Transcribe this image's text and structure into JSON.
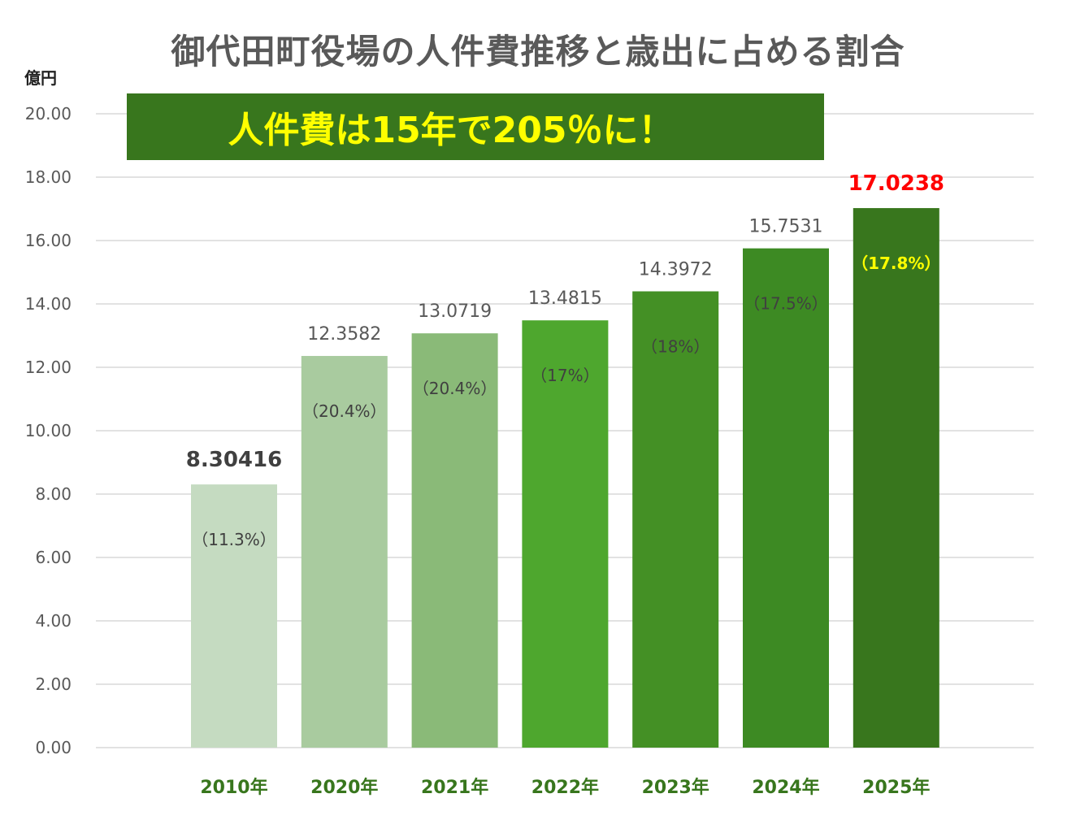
{
  "title": "御代田町役場の人件費推移と歳出に占める割合",
  "y_unit": "億円",
  "banner": "人件費は15年で205％に！",
  "chart_data": {
    "type": "bar",
    "title": "御代田町役場の人件費推移と歳出に占める割合",
    "ylabel": "億円",
    "ylim": [
      0,
      20
    ],
    "yticks": [
      "0.00",
      "2.00",
      "4.00",
      "6.00",
      "8.00",
      "10.00",
      "12.00",
      "14.00",
      "16.00",
      "18.00",
      "20.00"
    ],
    "categories": [
      "2010年",
      "2020年",
      "2021年",
      "2022年",
      "2023年",
      "2024年",
      "2025年"
    ],
    "values": [
      8.30416,
      12.3582,
      13.0719,
      13.4815,
      14.3972,
      15.7531,
      17.0238
    ],
    "value_labels": [
      "8.30416",
      "12.3582",
      "13.0719",
      "13.4815",
      "14.3972",
      "15.7531",
      "17.0238"
    ],
    "share_labels": [
      "（11.3%）",
      "（20.4%）",
      "（20.4%）",
      "（17%）",
      "（18%）",
      "（17.5%）",
      "（17.8%）"
    ],
    "bar_colors": [
      "#c5dbc1",
      "#a9cb9f",
      "#8aba78",
      "#4ea72e",
      "#449025",
      "#3d8a23",
      "#38761d"
    ],
    "highlight_value_colors": [
      "#404040",
      "#595959",
      "#595959",
      "#595959",
      "#595959",
      "#595959",
      "#ff0000"
    ],
    "share_label_colors": [
      "#404040",
      "#404040",
      "#404040",
      "#404040",
      "#404040",
      "#404040",
      "#ffff00"
    ],
    "category_label_color": "#38761d",
    "grid": true
  }
}
